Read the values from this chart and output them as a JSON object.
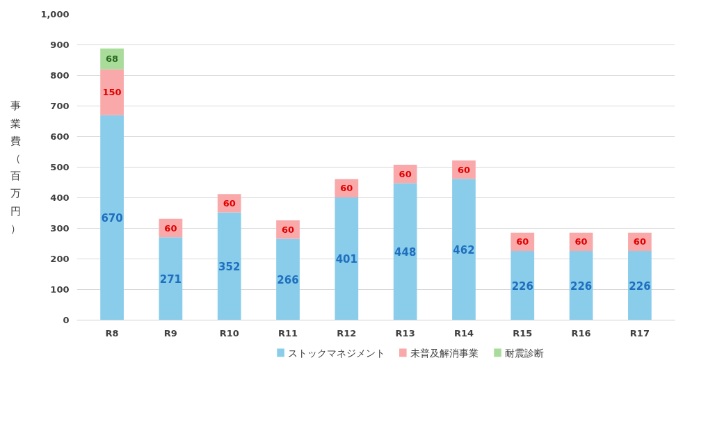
{
  "chart_data": {
    "type": "bar",
    "stacked": true,
    "ylabel": "事業費（百万円）",
    "categories": [
      "R8",
      "R9",
      "R10",
      "R11",
      "R12",
      "R13",
      "R14",
      "R15",
      "R16",
      "R17"
    ],
    "series": [
      {
        "name": "ストックマネジメント",
        "color": "#89cdea",
        "values": [
          670,
          271,
          352,
          266,
          401,
          448,
          462,
          226,
          226,
          226
        ]
      },
      {
        "name": "未普及解消事業",
        "color": "#f9a9a9",
        "values": [
          150,
          60,
          60,
          60,
          60,
          60,
          60,
          60,
          60,
          60
        ]
      },
      {
        "name": "耐震診断",
        "color": "#a9dc9a",
        "values": [
          68,
          null,
          null,
          null,
          null,
          null,
          null,
          null,
          null,
          null
        ]
      }
    ],
    "ylim": [
      0,
      1000
    ],
    "yticks": [
      0,
      100,
      200,
      300,
      400,
      500,
      600,
      700,
      800,
      900,
      {
        "value": 1000,
        "label": "1,000"
      }
    ],
    "grid": "y",
    "legend": "bottom",
    "data_labels": true
  }
}
